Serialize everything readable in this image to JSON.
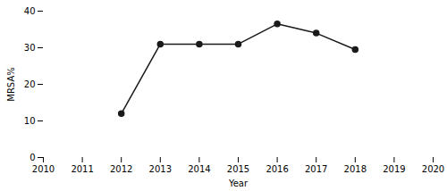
{
  "chart_data": {
    "type": "line",
    "x": [
      2012,
      2013,
      2014,
      2015,
      2016,
      2017,
      2018
    ],
    "values": [
      12.0,
      31.0,
      31.0,
      31.0,
      36.5,
      34.0,
      29.5
    ],
    "xlabel": "Year",
    "ylabel": "MRSA%",
    "color": "#1a1a1a",
    "marker": "circle",
    "xlim": [
      2010,
      2020
    ],
    "ylim": [
      0,
      40
    ],
    "xticks": [
      2010,
      2011,
      2012,
      2013,
      2014,
      2015,
      2016,
      2017,
      2018,
      2019,
      2020
    ],
    "yticks": [
      0,
      10,
      20,
      30,
      40
    ],
    "grid": false
  }
}
